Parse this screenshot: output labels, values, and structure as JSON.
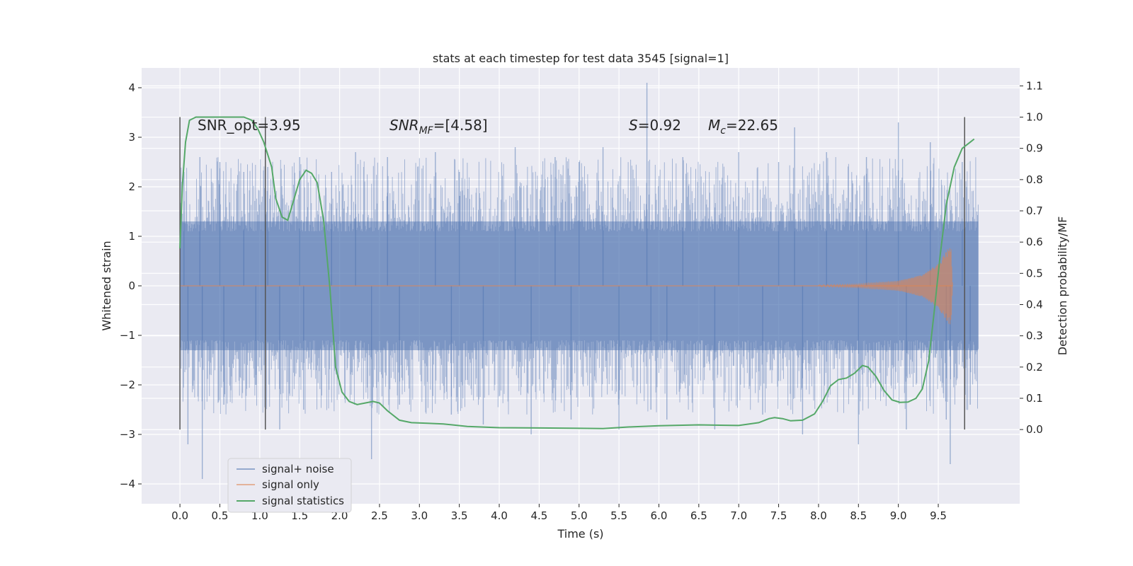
{
  "chart_data": {
    "type": "line",
    "title": "stats at each timestep for test data 3545 [signal=1]",
    "xlabel": "Time (s)",
    "ylabel": "Whitened strain",
    "y2label": "Detection probability/MF",
    "xlim": [
      -0.48,
      10.52
    ],
    "ylim": [
      -4.4,
      4.4
    ],
    "y2lim": [
      -0.2375,
      1.1575
    ],
    "x_ticks": [
      0.0,
      0.5,
      1.0,
      1.5,
      2.0,
      2.5,
      3.0,
      3.5,
      4.0,
      4.5,
      5.0,
      5.5,
      6.0,
      6.5,
      7.0,
      7.5,
      8.0,
      8.5,
      9.0,
      9.5
    ],
    "x_tick_labels": [
      "0.0",
      "0.5",
      "1.0",
      "1.5",
      "2.0",
      "2.5",
      "3.0",
      "3.5",
      "4.0",
      "4.5",
      "5.0",
      "5.5",
      "6.0",
      "6.5",
      "7.0",
      "7.5",
      "8.0",
      "8.5",
      "9.0",
      "9.5"
    ],
    "y_ticks": [
      -4,
      -3,
      -2,
      -1,
      0,
      1,
      2,
      3,
      4
    ],
    "y_tick_labels": [
      "−4",
      "−3",
      "−2",
      "−1",
      "0",
      "1",
      "2",
      "3",
      "4"
    ],
    "y2_ticks": [
      0.0,
      0.1,
      0.2,
      0.3,
      0.4,
      0.5,
      0.6,
      0.7,
      0.8,
      0.9,
      1.0,
      1.1
    ],
    "y2_tick_labels": [
      "0.0",
      "0.1",
      "0.2",
      "0.3",
      "0.4",
      "0.5",
      "0.6",
      "0.7",
      "0.8",
      "0.9",
      "1.0",
      "1.1"
    ],
    "grid": true,
    "legend_position": "lower-left",
    "colors": {
      "noise": "#4c72b0",
      "signal": "#dd8452",
      "stats": "#55a868",
      "background": "#eaeaf2",
      "grid": "#ffffff",
      "marker_line": "#555555"
    },
    "annotations": [
      {
        "text": "SNR_opt=3.95",
        "x": 0.2,
        "y2": 1.0
      },
      {
        "text": "SNR_MF=[4.58]",
        "x": 2.6,
        "y2": 1.0
      },
      {
        "text": "S=0.92",
        "x": 5.6,
        "y2": 1.0
      },
      {
        "text": "M_c=22.65",
        "x": 6.6,
        "y2": 1.0
      }
    ],
    "vertical_markers_x": [
      0.0,
      1.07,
      9.83
    ],
    "vertical_marker_range_y2": [
      0.0,
      1.0
    ],
    "series": [
      {
        "name": "signal+ noise",
        "kind": "noise",
        "x_range": [
          0.0,
          10.0
        ],
        "core_band": [
          -1.3,
          1.3
        ],
        "peaks": [
          [
            0.05,
            2.3
          ],
          [
            0.1,
            -3.2
          ],
          [
            0.25,
            2.6
          ],
          [
            0.28,
            -3.9
          ],
          [
            0.5,
            2.5
          ],
          [
            0.55,
            -2.4
          ],
          [
            0.8,
            2.3
          ],
          [
            0.95,
            -2.0
          ],
          [
            1.1,
            2.4
          ],
          [
            1.25,
            -2.9
          ],
          [
            1.5,
            2.6
          ],
          [
            1.55,
            -2.5
          ],
          [
            1.9,
            2.3
          ],
          [
            2.2,
            2.7
          ],
          [
            2.4,
            -3.5
          ],
          [
            2.6,
            2.6
          ],
          [
            2.75,
            -2.4
          ],
          [
            3.2,
            2.7
          ],
          [
            3.4,
            -2.6
          ],
          [
            3.5,
            2.3
          ],
          [
            3.8,
            -2.8
          ],
          [
            4.2,
            2.8
          ],
          [
            4.4,
            -3.0
          ],
          [
            4.7,
            2.6
          ],
          [
            4.9,
            -2.7
          ],
          [
            5.0,
            2.5
          ],
          [
            5.3,
            2.8
          ],
          [
            5.5,
            -2.9
          ],
          [
            5.85,
            4.1
          ],
          [
            5.9,
            -2.5
          ],
          [
            6.1,
            -2.7
          ],
          [
            6.3,
            2.6
          ],
          [
            6.7,
            -2.9
          ],
          [
            7.0,
            2.7
          ],
          [
            7.3,
            -2.6
          ],
          [
            7.5,
            2.5
          ],
          [
            7.7,
            3.2
          ],
          [
            7.8,
            -3.0
          ],
          [
            8.1,
            2.7
          ],
          [
            8.5,
            -3.2
          ],
          [
            8.6,
            2.6
          ],
          [
            9.0,
            3.3
          ],
          [
            9.1,
            -2.9
          ],
          [
            9.4,
            2.9
          ],
          [
            9.6,
            -2.7
          ],
          [
            9.65,
            -3.6
          ],
          [
            9.8,
            2.5
          ],
          [
            9.9,
            -2.4
          ]
        ]
      },
      {
        "name": "signal only",
        "kind": "signal",
        "x_range": [
          8.0,
          9.68
        ],
        "envelope": [
          [
            8.0,
            0.02
          ],
          [
            8.5,
            0.04
          ],
          [
            9.0,
            0.1
          ],
          [
            9.3,
            0.22
          ],
          [
            9.5,
            0.45
          ],
          [
            9.62,
            0.75
          ],
          [
            9.66,
            0.8
          ],
          [
            9.68,
            0.0
          ]
        ]
      },
      {
        "name": "signal statistics",
        "kind": "stats",
        "points": [
          [
            0.0,
            0.58
          ],
          [
            0.03,
            0.78
          ],
          [
            0.07,
            0.92
          ],
          [
            0.12,
            0.99
          ],
          [
            0.2,
            1.0
          ],
          [
            0.4,
            1.0
          ],
          [
            0.8,
            1.0
          ],
          [
            0.9,
            0.99
          ],
          [
            0.98,
            0.96
          ],
          [
            1.05,
            0.92
          ],
          [
            1.15,
            0.84
          ],
          [
            1.2,
            0.74
          ],
          [
            1.28,
            0.68
          ],
          [
            1.35,
            0.67
          ],
          [
            1.42,
            0.73
          ],
          [
            1.5,
            0.8
          ],
          [
            1.58,
            0.83
          ],
          [
            1.65,
            0.82
          ],
          [
            1.72,
            0.79
          ],
          [
            1.8,
            0.67
          ],
          [
            1.88,
            0.45
          ],
          [
            1.95,
            0.2
          ],
          [
            2.03,
            0.12
          ],
          [
            2.12,
            0.09
          ],
          [
            2.22,
            0.08
          ],
          [
            2.32,
            0.085
          ],
          [
            2.42,
            0.09
          ],
          [
            2.5,
            0.085
          ],
          [
            2.6,
            0.06
          ],
          [
            2.75,
            0.03
          ],
          [
            2.9,
            0.022
          ],
          [
            3.1,
            0.02
          ],
          [
            3.3,
            0.018
          ],
          [
            3.6,
            0.01
          ],
          [
            4.0,
            0.006
          ],
          [
            4.5,
            0.005
          ],
          [
            5.0,
            0.004
          ],
          [
            5.3,
            0.003
          ],
          [
            5.6,
            0.008
          ],
          [
            6.0,
            0.012
          ],
          [
            6.5,
            0.015
          ],
          [
            7.0,
            0.013
          ],
          [
            7.25,
            0.022
          ],
          [
            7.38,
            0.035
          ],
          [
            7.45,
            0.038
          ],
          [
            7.55,
            0.035
          ],
          [
            7.65,
            0.028
          ],
          [
            7.8,
            0.03
          ],
          [
            7.95,
            0.05
          ],
          [
            8.05,
            0.09
          ],
          [
            8.15,
            0.14
          ],
          [
            8.25,
            0.16
          ],
          [
            8.35,
            0.165
          ],
          [
            8.45,
            0.18
          ],
          [
            8.55,
            0.205
          ],
          [
            8.62,
            0.2
          ],
          [
            8.72,
            0.17
          ],
          [
            8.82,
            0.125
          ],
          [
            8.92,
            0.095
          ],
          [
            9.02,
            0.087
          ],
          [
            9.12,
            0.088
          ],
          [
            9.22,
            0.1
          ],
          [
            9.3,
            0.13
          ],
          [
            9.38,
            0.22
          ],
          [
            9.45,
            0.38
          ],
          [
            9.52,
            0.55
          ],
          [
            9.6,
            0.72
          ],
          [
            9.7,
            0.84
          ],
          [
            9.8,
            0.9
          ],
          [
            9.9,
            0.92
          ],
          [
            9.95,
            0.93
          ]
        ]
      }
    ]
  }
}
